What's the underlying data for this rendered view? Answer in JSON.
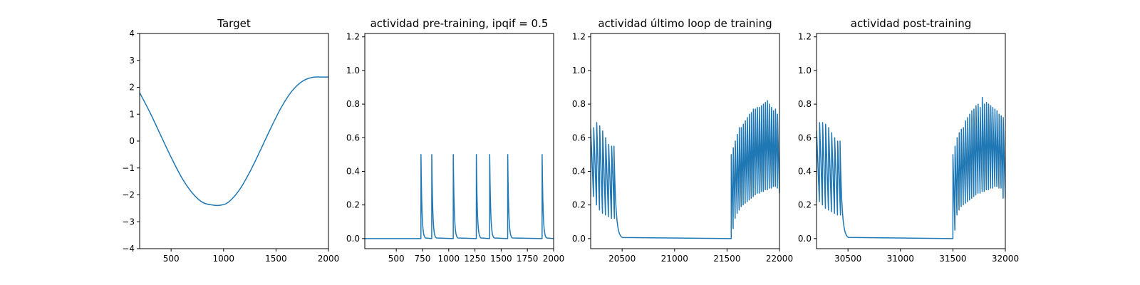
{
  "chart_data": [
    {
      "type": "line",
      "title": "Target",
      "color": "#1f77b4",
      "xlim": [
        200,
        2000
      ],
      "ylim": [
        -4,
        4
      ],
      "xticks": [
        500,
        1000,
        1500,
        2000
      ],
      "yticks": [
        -4,
        -3,
        -2,
        -1,
        0,
        1,
        2,
        3,
        4
      ],
      "ytick_format": "int",
      "series": [
        {
          "x": [
            200,
            300,
            400,
            500,
            600,
            700,
            800,
            900,
            975,
            1050,
            1150,
            1250,
            1350,
            1450,
            1550,
            1650,
            1750,
            1850,
            1950,
            2000
          ],
          "y": [
            1.8,
            1.05,
            0.22,
            -0.6,
            -1.35,
            -1.92,
            -2.28,
            -2.38,
            -2.38,
            -2.26,
            -1.82,
            -1.15,
            -0.35,
            0.48,
            1.25,
            1.85,
            2.22,
            2.37,
            2.38,
            2.38
          ]
        }
      ]
    },
    {
      "type": "line",
      "title": "actividad pre-training, ipqif = 0.5",
      "color": "#1f77b4",
      "xlim": [
        200,
        2000
      ],
      "ylim": [
        -0.06,
        1.22
      ],
      "xticks": [
        500,
        750,
        1000,
        1250,
        1500,
        1750,
        2000
      ],
      "yticks": [
        0.0,
        0.2,
        0.4,
        0.6,
        0.8,
        1.0,
        1.2
      ],
      "ytick_format": "1f",
      "baseline": 0.0,
      "flat_start": 200,
      "spikes": [
        {
          "x": 735,
          "peak": 0.5
        },
        {
          "x": 838,
          "peak": 0.5
        },
        {
          "x": 1043,
          "peak": 0.5
        },
        {
          "x": 1263,
          "peak": 0.5
        },
        {
          "x": 1390,
          "peak": 0.5
        },
        {
          "x": 1562,
          "peak": 0.5
        },
        {
          "x": 1890,
          "peak": 0.5
        }
      ]
    },
    {
      "type": "line",
      "title": "actividad último loop de training",
      "color": "#1f77b4",
      "xlim": [
        20200,
        22000
      ],
      "ylim": [
        -0.06,
        1.22
      ],
      "xticks": [
        20500,
        21000,
        21500,
        22000
      ],
      "yticks": [
        0.0,
        0.2,
        0.4,
        0.6,
        0.8,
        1.0,
        1.2
      ],
      "ytick_format": "1f",
      "burst1": {
        "start": 20200,
        "end": 20428,
        "peaks": [
          0.65,
          0.66,
          0.69,
          0.67,
          0.64,
          0.6,
          0.56,
          0.55
        ],
        "troughs": [
          0.25,
          0.2,
          0.17,
          0.15,
          0.14,
          0.13,
          0.12
        ]
      },
      "quiet": {
        "start": 20428,
        "end": 21540
      },
      "burst2": {
        "start": 21540,
        "end": 22000,
        "peaks": [
          0.5,
          0.54,
          0.58,
          0.62,
          0.66,
          0.66,
          0.68,
          0.7,
          0.72,
          0.74,
          0.75,
          0.77,
          0.77,
          0.78,
          0.78,
          0.79,
          0.8,
          0.81,
          0.82,
          0.8,
          0.78,
          0.76,
          0.77,
          0.74
        ],
        "troughs": [
          0.06,
          0.12,
          0.15,
          0.17,
          0.19,
          0.2,
          0.21,
          0.22,
          0.23,
          0.24,
          0.25,
          0.26,
          0.27,
          0.27,
          0.28,
          0.28,
          0.29,
          0.29,
          0.3,
          0.3,
          0.31,
          0.31,
          0.3,
          0.27
        ]
      }
    },
    {
      "type": "line",
      "title": "actividad post-training",
      "color": "#1f77b4",
      "xlim": [
        30200,
        32000
      ],
      "ylim": [
        -0.06,
        1.22
      ],
      "xticks": [
        30500,
        31000,
        31500,
        32000
      ],
      "yticks": [
        0.0,
        0.2,
        0.4,
        0.6,
        0.8,
        1.0,
        1.2
      ],
      "ytick_format": "1f",
      "burst1": {
        "start": 30200,
        "end": 30430,
        "peaks": [
          0.64,
          0.69,
          0.69,
          0.68,
          0.66,
          0.63,
          0.6,
          0.58
        ],
        "troughs": [
          0.22,
          0.2,
          0.18,
          0.17,
          0.16,
          0.15,
          0.14
        ]
      },
      "quiet": {
        "start": 30430,
        "end": 31500
      },
      "burst2": {
        "start": 31500,
        "end": 32000,
        "peaks": [
          0.5,
          0.55,
          0.6,
          0.63,
          0.65,
          0.66,
          0.7,
          0.72,
          0.74,
          0.76,
          0.77,
          0.79,
          0.8,
          0.78,
          0.84,
          0.8,
          0.81,
          0.8,
          0.79,
          0.78,
          0.77,
          0.76,
          0.74,
          0.73,
          0.72
        ],
        "troughs": [
          0.05,
          0.14,
          0.17,
          0.19,
          0.2,
          0.21,
          0.22,
          0.23,
          0.24,
          0.25,
          0.26,
          0.27,
          0.27,
          0.28,
          0.28,
          0.29,
          0.29,
          0.3,
          0.3,
          0.31,
          0.31,
          0.3,
          0.3,
          0.24
        ]
      }
    }
  ]
}
